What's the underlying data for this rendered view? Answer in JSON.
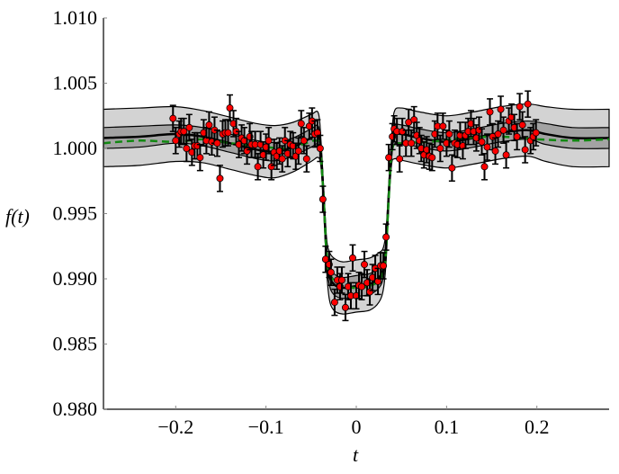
{
  "chart_data": {
    "type": "scatter",
    "title": "",
    "xlabel": "t",
    "ylabel": "f(t)",
    "xlim": [
      -0.28,
      0.28
    ],
    "ylim": [
      0.98,
      1.01
    ],
    "grid": false,
    "x_ticks": [
      -0.2,
      -0.1,
      0,
      0.1,
      0.2
    ],
    "x_tick_labels": [
      "−0.2",
      "−0.1",
      "0",
      "0.1",
      "0.2"
    ],
    "y_ticks": [
      0.98,
      0.985,
      0.99,
      0.995,
      1.0,
      1.005,
      1.01
    ],
    "y_tick_labels": [
      "0.980",
      "0.985",
      "0.990",
      "0.995",
      "1.000",
      "1.005",
      "1.010"
    ],
    "colors": {
      "points": "#ff0000",
      "errorbars": "#000000",
      "mean": "#000000",
      "band_inner": "#a3a3a3",
      "band_outer": "#d3d3d3",
      "model": "#118811"
    },
    "observations": {
      "yerr": 0.001,
      "points": [
        [
          -0.203,
          1.0023
        ],
        [
          -0.2,
          1.0006
        ],
        [
          -0.196,
          1.0011
        ],
        [
          -0.194,
          1.0013
        ],
        [
          -0.191,
          1.0013
        ],
        [
          -0.188,
          1.0
        ],
        [
          -0.185,
          1.0016
        ],
        [
          -0.182,
          0.9997
        ],
        [
          -0.179,
          1.0002
        ],
        [
          -0.176,
          1.0002
        ],
        [
          -0.173,
          0.9993
        ],
        [
          -0.169,
          1.0012
        ],
        [
          -0.166,
          1.0006
        ],
        [
          -0.163,
          1.0018
        ],
        [
          -0.16,
          1.0005
        ],
        [
          -0.157,
          1.0014
        ],
        [
          -0.154,
          1.0004
        ],
        [
          -0.151,
          0.9977
        ],
        [
          -0.148,
          1.0011
        ],
        [
          -0.145,
          1.0012
        ],
        [
          -0.142,
          1.0012
        ],
        [
          -0.14,
          1.0031
        ],
        [
          -0.136,
          1.0019
        ],
        [
          -0.133,
          1.0013
        ],
        [
          -0.13,
          1.0003
        ],
        [
          -0.127,
          1.0008
        ],
        [
          -0.124,
          1.0006
        ],
        [
          -0.121,
          0.9998
        ],
        [
          -0.118,
          1.0009
        ],
        [
          -0.116,
          1.0003
        ],
        [
          -0.112,
          1.0003
        ],
        [
          -0.109,
          0.9986
        ],
        [
          -0.106,
          1.0003
        ],
        [
          -0.103,
          0.9995
        ],
        [
          -0.1,
          1.0001
        ],
        [
          -0.097,
          1.0006
        ],
        [
          -0.094,
          0.9986
        ],
        [
          -0.091,
          0.9997
        ],
        [
          -0.088,
          0.9994
        ],
        [
          -0.085,
          0.9998
        ],
        [
          -0.082,
          0.9992
        ],
        [
          -0.079,
          1.0006
        ],
        [
          -0.076,
          0.9996
        ],
        [
          -0.073,
          1.0003
        ],
        [
          -0.07,
          1.0002
        ],
        [
          -0.067,
          0.9994
        ],
        [
          -0.064,
          0.9998
        ],
        [
          -0.061,
          1.0019
        ],
        [
          -0.058,
          1.0006
        ],
        [
          -0.055,
          0.9992
        ],
        [
          -0.052,
          1.0017
        ],
        [
          -0.049,
          1.0021
        ],
        [
          -0.046,
          1.0011
        ],
        [
          -0.043,
          1.0012
        ],
        [
          -0.04,
          1.0
        ],
        [
          -0.037,
          0.9961
        ],
        [
          -0.034,
          0.9915
        ],
        [
          -0.03,
          0.9911
        ],
        [
          -0.028,
          0.9905
        ],
        [
          -0.024,
          0.9882
        ],
        [
          -0.021,
          0.9899
        ],
        [
          -0.018,
          0.9894
        ],
        [
          -0.016,
          0.9899
        ],
        [
          -0.012,
          0.9878
        ],
        [
          -0.009,
          0.9894
        ],
        [
          -0.006,
          0.9887
        ],
        [
          -0.004,
          0.9916
        ],
        [
          0.0,
          0.9887
        ],
        [
          0.003,
          0.9895
        ],
        [
          0.006,
          0.9894
        ],
        [
          0.009,
          0.9911
        ],
        [
          0.012,
          0.9897
        ],
        [
          0.015,
          0.989
        ],
        [
          0.018,
          0.9901
        ],
        [
          0.021,
          0.9908
        ],
        [
          0.024,
          0.9898
        ],
        [
          0.027,
          0.991
        ],
        [
          0.03,
          0.991
        ],
        [
          0.033,
          0.9932
        ],
        [
          0.036,
          0.9993
        ],
        [
          0.04,
          1.0009
        ],
        [
          0.042,
          1.0015
        ],
        [
          0.045,
          1.0013
        ],
        [
          0.048,
          0.9992
        ],
        [
          0.051,
          1.0013
        ],
        [
          0.055,
          1.0004
        ],
        [
          0.058,
          1.002
        ],
        [
          0.061,
          1.0004
        ],
        [
          0.064,
          1.0022
        ],
        [
          0.067,
          1.001
        ],
        [
          0.07,
          1.0006
        ],
        [
          0.072,
          1.0
        ],
        [
          0.075,
          0.9995
        ],
        [
          0.078,
          0.9999
        ],
        [
          0.081,
          0.9994
        ],
        [
          0.084,
          0.9993
        ],
        [
          0.087,
          1.0011
        ],
        [
          0.09,
          1.0017
        ],
        [
          0.093,
          1.0
        ],
        [
          0.096,
          1.0017
        ],
        [
          0.1,
          1.0004
        ],
        [
          0.103,
          1.0011
        ],
        [
          0.106,
          0.9985
        ],
        [
          0.109,
          1.0004
        ],
        [
          0.112,
          1.0003
        ],
        [
          0.115,
          1.001
        ],
        [
          0.118,
          1.0002
        ],
        [
          0.121,
          1.001
        ],
        [
          0.124,
          1.0013
        ],
        [
          0.127,
          1.0019
        ],
        [
          0.13,
          1.0013
        ],
        [
          0.133,
          1.0008
        ],
        [
          0.136,
          1.0014
        ],
        [
          0.139,
          1.0005
        ],
        [
          0.142,
          0.9986
        ],
        [
          0.145,
          1.0001
        ],
        [
          0.148,
          1.0028
        ],
        [
          0.151,
          1.0009
        ],
        [
          0.154,
          0.9998
        ],
        [
          0.157,
          1.0011
        ],
        [
          0.16,
          1.003
        ],
        [
          0.163,
          1.0014
        ],
        [
          0.166,
          0.9995
        ],
        [
          0.169,
          1.0021
        ],
        [
          0.172,
          1.0024
        ],
        [
          0.175,
          1.0016
        ],
        [
          0.178,
          1.0009
        ],
        [
          0.181,
          1.0032
        ],
        [
          0.184,
          1.0018
        ],
        [
          0.187,
          0.9999
        ],
        [
          0.19,
          1.0034
        ],
        [
          0.193,
          1.0006
        ],
        [
          0.196,
          1.0009
        ],
        [
          0.199,
          1.0012
        ]
      ]
    },
    "prediction": {
      "t": [
        -0.28,
        -0.24,
        -0.2,
        -0.17,
        -0.14,
        -0.11,
        -0.09,
        -0.07,
        -0.05,
        -0.042,
        -0.039,
        -0.036,
        -0.033,
        -0.03,
        -0.025,
        -0.015,
        0,
        0.015,
        0.025,
        0.03,
        0.033,
        0.036,
        0.039,
        0.042,
        0.05,
        0.07,
        0.1,
        0.13,
        0.16,
        0.19,
        0.21,
        0.24,
        0.28
      ],
      "mean": [
        1.0008,
        1.0009,
        1.0011,
        1.0009,
        1.0004,
        0.9999,
        0.99975,
        1.0001,
        1.0008,
        1.001,
        0.9995,
        0.996,
        0.992,
        0.9903,
        0.9896,
        0.9893,
        0.98945,
        0.9896,
        0.9901,
        0.9908,
        0.9925,
        0.9965,
        0.9997,
        1.001,
        1.0011,
        1.0008,
        1.0005,
        1.0008,
        1.0012,
        1.0014,
        1.0011,
        1.0008,
        1.0008
      ],
      "inner_halfwidth": [
        0.0008,
        0.0008,
        0.0007,
        0.0007,
        0.0007,
        0.0007,
        0.0007,
        0.0007,
        0.0007,
        0.0007,
        0.0005,
        0.0004,
        0.0005,
        0.0007,
        0.0008,
        0.0008,
        0.0008,
        0.0008,
        0.0008,
        0.0007,
        0.0005,
        0.0004,
        0.0005,
        0.0007,
        0.0007,
        0.0007,
        0.0007,
        0.0007,
        0.0007,
        0.0007,
        0.0008,
        0.0008,
        0.0008
      ],
      "outer_halfwidth": [
        0.0022,
        0.0022,
        0.0021,
        0.002,
        0.002,
        0.002,
        0.002,
        0.0019,
        0.0018,
        0.0017,
        0.001,
        0.0008,
        0.0012,
        0.0018,
        0.002,
        0.002,
        0.002,
        0.002,
        0.0019,
        0.0016,
        0.0012,
        0.0008,
        0.001,
        0.0018,
        0.002,
        0.002,
        0.002,
        0.002,
        0.002,
        0.002,
        0.0021,
        0.0022,
        0.0022
      ]
    },
    "model_dashed": {
      "t": [
        -0.28,
        -0.24,
        -0.2,
        -0.17,
        -0.14,
        -0.11,
        -0.08,
        -0.06,
        -0.045,
        -0.04,
        -0.036,
        -0.033,
        -0.03,
        -0.02,
        0,
        0.02,
        0.03,
        0.033,
        0.036,
        0.04,
        0.05,
        0.08,
        0.12,
        0.16,
        0.2,
        0.24,
        0.28
      ],
      "f": [
        1.0004,
        1.0006,
        1.0005,
        1.0007,
        1.0004,
        1.0002,
        1.0,
        1.0003,
        1.0006,
        1.0,
        0.996,
        0.992,
        0.9905,
        0.9896,
        0.9893,
        0.9896,
        0.9905,
        0.9922,
        0.9962,
        1.0,
        1.0004,
        1.0005,
        1.0008,
        1.0009,
        1.0007,
        1.0006,
        1.0007
      ]
    }
  }
}
